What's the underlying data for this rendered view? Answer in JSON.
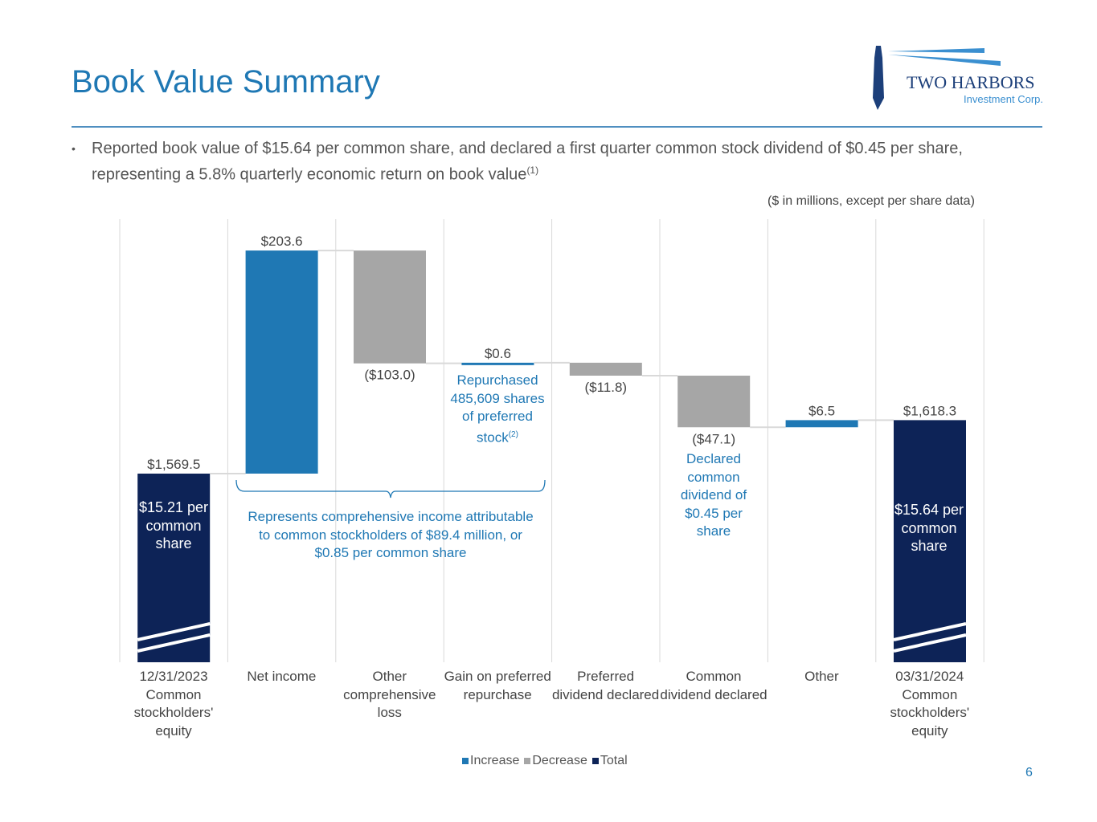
{
  "title": "Book Value Summary",
  "bullet": {
    "text": "Reported book value of $15.64 per common share, and declared a first quarter common stock dividend of $0.45 per share, representing a 5.8% quarterly economic return on book value",
    "footnote": "(1)"
  },
  "units_note": "($ in millions, except per share data)",
  "logo": {
    "name": "TWO HARBORS",
    "sub": "Investment Corp."
  },
  "page_number": "6",
  "colors": {
    "increase": "#1f78b4",
    "decrease": "#a6a6a6",
    "total": "#0d2357",
    "annotation": "#1f78b4"
  },
  "annotations": {
    "start_per_share": "$15.21 per common share",
    "end_per_share": "$15.64 per common share",
    "comprehensive": "Represents comprehensive income attributable to common stockholders of $89.4 million, or $0.85 per common share",
    "repurchase": "Repurchased 485,609 shares of preferred stock",
    "repurchase_fn": "(2)",
    "dividend": "Declared common dividend of $0.45 per share"
  },
  "chart_data": {
    "type": "waterfall",
    "categories": [
      "12/31/2023 Common stockholders' equity",
      "Net income",
      "Other comprehensive loss",
      "Gain on preferred repurchase",
      "Preferred dividend declared",
      "Common dividend declared",
      "Other",
      "03/31/2024 Common stockholders' equity"
    ],
    "values": [
      1569.5,
      203.6,
      -103.0,
      0.6,
      -11.8,
      -47.1,
      6.5,
      1618.3
    ],
    "kinds": [
      "total",
      "increase",
      "decrease",
      "increase",
      "decrease",
      "decrease",
      "increase",
      "total"
    ],
    "labels": [
      "$1,569.5",
      "$203.6",
      "($103.0)",
      "$0.6",
      "($11.8)",
      "($47.1)",
      "$6.5",
      "$1,618.3"
    ],
    "legend": [
      "Increase",
      "Decrease",
      "Total"
    ],
    "legend_placement": "bottom",
    "axis_break": true
  }
}
